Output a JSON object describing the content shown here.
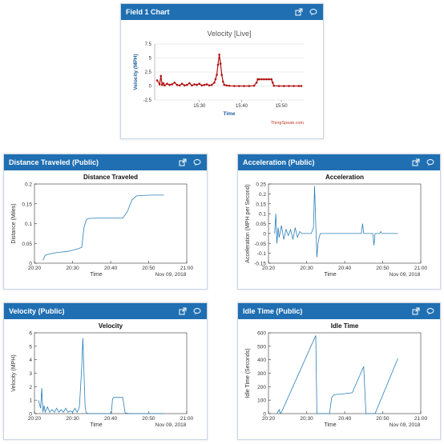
{
  "widgets": {
    "field1": {
      "title": "Field 1 Chart"
    },
    "distance": {
      "title": "Distance Traveled (Public)"
    },
    "acceleration": {
      "title": "Acceleration (Public)"
    },
    "velocity": {
      "title": "Velocity (Public)"
    },
    "idle": {
      "title": "Idle Time (Public)"
    }
  },
  "icons": {
    "open": "external-link-icon",
    "comment": "comment-icon"
  },
  "colors": {
    "header": "#1f6fb2",
    "thingspeak_line": "#b01010",
    "matlab_line": "#2a7fb8"
  },
  "chart_data": [
    {
      "id": "field1",
      "type": "line",
      "title": "Velocity [Live]",
      "xlabel": "Time",
      "ylabel": "Velocity (MPH)",
      "credit": "ThingSpeak.com",
      "x_ticks": [
        {
          "v": 15.5,
          "label": "15:30"
        },
        {
          "v": 15.67,
          "label": "15:40"
        },
        {
          "v": 15.83,
          "label": "15:50"
        }
      ],
      "y_ticks": [
        {
          "v": 7.5,
          "label": "7.5"
        },
        {
          "v": 5,
          "label": "5"
        },
        {
          "v": 2.5,
          "label": "2.5"
        },
        {
          "v": 0,
          "label": "0"
        },
        {
          "v": -2.5,
          "label": "-2.5"
        }
      ],
      "xlim": [
        15.32,
        15.92
      ],
      "ylim": [
        -2.5,
        7.5
      ],
      "markers": true,
      "x": [
        15.33,
        15.34,
        15.345,
        15.35,
        15.355,
        15.36,
        15.37,
        15.38,
        15.39,
        15.4,
        15.41,
        15.42,
        15.43,
        15.44,
        15.45,
        15.46,
        15.47,
        15.48,
        15.49,
        15.5,
        15.51,
        15.52,
        15.53,
        15.54,
        15.55,
        15.56,
        15.565,
        15.57,
        15.575,
        15.58,
        15.585,
        15.59,
        15.595,
        15.6,
        15.61,
        15.62,
        15.64,
        15.66,
        15.68,
        15.7,
        15.72,
        15.73,
        15.735,
        15.74,
        15.75,
        15.76,
        15.77,
        15.78,
        15.79,
        15.795,
        15.8,
        15.82,
        15.84,
        15.86,
        15.88,
        15.9,
        15.91
      ],
      "y": [
        1.0,
        0.3,
        1.8,
        0.2,
        0.5,
        0.1,
        0.4,
        0.2,
        0.3,
        0.6,
        0.2,
        0.1,
        0.4,
        0.1,
        0.2,
        0.5,
        0.1,
        0.3,
        0.2,
        0.4,
        0.1,
        0.2,
        0.3,
        0.1,
        0.2,
        0.6,
        1.2,
        2.0,
        3.8,
        5.6,
        4.0,
        2.0,
        0.8,
        0.2,
        0.1,
        0.05,
        0.0,
        0.0,
        0.0,
        0.0,
        0.05,
        0.6,
        1.2,
        1.2,
        1.2,
        1.2,
        1.2,
        1.2,
        1.2,
        0.6,
        0.05,
        0.0,
        0.0,
        0.0,
        0.0,
        0.0,
        0.0
      ]
    },
    {
      "id": "distance",
      "type": "line",
      "title": "Distance Traveled",
      "xlabel": "Time",
      "ylabel": "Distance (Miles)",
      "date_label": "Nov 09, 2018",
      "x_ticks": [
        {
          "v": 20.333,
          "label": "20:20"
        },
        {
          "v": 20.5,
          "label": "20:30"
        },
        {
          "v": 20.667,
          "label": "20:40"
        },
        {
          "v": 20.833,
          "label": "20:50"
        },
        {
          "v": 21.0,
          "label": "21:00"
        }
      ],
      "y_ticks": [
        {
          "v": 0,
          "label": "0"
        },
        {
          "v": 0.05,
          "label": "0.05"
        },
        {
          "v": 0.1,
          "label": "0.1"
        },
        {
          "v": 0.15,
          "label": "0.15"
        },
        {
          "v": 0.2,
          "label": "0.2"
        }
      ],
      "xlim": [
        20.333,
        21.0
      ],
      "ylim": [
        0,
        0.2
      ],
      "x": [
        20.37,
        20.38,
        20.39,
        20.42,
        20.45,
        20.48,
        20.5,
        20.52,
        20.54,
        20.55,
        20.56,
        20.57,
        20.6,
        20.65,
        20.7,
        20.72,
        20.74,
        20.76,
        20.78,
        20.8,
        20.85,
        20.9
      ],
      "y": [
        0.007,
        0.02,
        0.022,
        0.026,
        0.028,
        0.03,
        0.033,
        0.036,
        0.04,
        0.09,
        0.11,
        0.113,
        0.114,
        0.114,
        0.114,
        0.114,
        0.13,
        0.16,
        0.17,
        0.171,
        0.172,
        0.172
      ]
    },
    {
      "id": "acceleration",
      "type": "line",
      "title": "Acceleration",
      "xlabel": "Time",
      "ylabel": "Acceleration (MPH per Second)",
      "date_label": "Nov 09, 2018",
      "x_ticks": [
        {
          "v": 20.333,
          "label": "20:20"
        },
        {
          "v": 20.5,
          "label": "20:30"
        },
        {
          "v": 20.667,
          "label": "20:40"
        },
        {
          "v": 20.833,
          "label": "20:50"
        },
        {
          "v": 21.0,
          "label": "21:00"
        }
      ],
      "y_ticks": [
        {
          "v": -0.15,
          "label": "-0.15"
        },
        {
          "v": -0.1,
          "label": "-0.1"
        },
        {
          "v": -0.05,
          "label": "-0.05"
        },
        {
          "v": 0,
          "label": "0"
        },
        {
          "v": 0.05,
          "label": "0.05"
        },
        {
          "v": 0.1,
          "label": "0.1"
        },
        {
          "v": 0.15,
          "label": "0.15"
        },
        {
          "v": 0.2,
          "label": "0.2"
        },
        {
          "v": 0.25,
          "label": "0.25"
        }
      ],
      "xlim": [
        20.333,
        21.0
      ],
      "ylim": [
        -0.15,
        0.25
      ],
      "x": [
        20.36,
        20.365,
        20.37,
        20.375,
        20.38,
        20.39,
        20.4,
        20.41,
        20.42,
        20.43,
        20.44,
        20.45,
        20.46,
        20.47,
        20.48,
        20.5,
        20.52,
        20.53,
        20.535,
        20.54,
        20.545,
        20.55,
        20.555,
        20.56,
        20.57,
        20.6,
        20.65,
        20.7,
        20.74,
        20.745,
        20.75,
        20.76,
        20.79,
        20.795,
        20.8,
        20.82,
        20.825,
        20.83,
        20.85,
        20.9
      ],
      "y": [
        0.0,
        0.1,
        -0.05,
        0.03,
        -0.02,
        0.04,
        -0.03,
        0.02,
        -0.01,
        0.02,
        -0.03,
        0.03,
        -0.02,
        0.01,
        0.0,
        0.0,
        0.0,
        0.03,
        0.24,
        0.05,
        -0.12,
        -0.05,
        -0.02,
        0.0,
        0.0,
        0.0,
        0.0,
        0.0,
        0.0,
        0.05,
        0.0,
        0.0,
        0.0,
        -0.06,
        0.0,
        0.0,
        0.01,
        0.0,
        0.0,
        0.0
      ]
    },
    {
      "id": "velocity",
      "type": "line",
      "title": "Velocity",
      "xlabel": "Time",
      "ylabel": "Velocity (MPH)",
      "date_label": "Nov 09, 2018",
      "x_ticks": [
        {
          "v": 20.333,
          "label": "20:20"
        },
        {
          "v": 20.5,
          "label": "20:30"
        },
        {
          "v": 20.667,
          "label": "20:40"
        },
        {
          "v": 20.833,
          "label": "20:50"
        },
        {
          "v": 21.0,
          "label": "21:00"
        }
      ],
      "y_ticks": [
        {
          "v": 0,
          "label": "0"
        },
        {
          "v": 1,
          "label": "1"
        },
        {
          "v": 2,
          "label": "2"
        },
        {
          "v": 3,
          "label": "3"
        },
        {
          "v": 4,
          "label": "4"
        },
        {
          "v": 5,
          "label": "5"
        },
        {
          "v": 6,
          "label": "6"
        }
      ],
      "xlim": [
        20.333,
        21.0
      ],
      "ylim": [
        0,
        6
      ],
      "x": [
        20.35,
        20.36,
        20.365,
        20.37,
        20.375,
        20.38,
        20.39,
        20.4,
        20.41,
        20.42,
        20.43,
        20.44,
        20.45,
        20.46,
        20.47,
        20.48,
        20.49,
        20.5,
        20.51,
        20.52,
        20.53,
        20.54,
        20.545,
        20.55,
        20.555,
        20.56,
        20.57,
        20.6,
        20.65,
        20.67,
        20.675,
        20.68,
        20.7,
        20.72,
        20.725,
        20.73,
        20.75,
        20.8,
        20.9
      ],
      "y": [
        1.0,
        0.4,
        1.9,
        0.1,
        0.6,
        0.1,
        0.5,
        0.1,
        0.3,
        0.1,
        0.4,
        0.1,
        0.3,
        0.1,
        0.4,
        0.1,
        0.2,
        0.1,
        0.4,
        0.1,
        0.5,
        3.5,
        5.6,
        3.0,
        0.5,
        0.05,
        0.0,
        0.0,
        0.0,
        0.0,
        1.1,
        1.2,
        1.2,
        1.2,
        0.6,
        0.05,
        0.0,
        0.0,
        0.0
      ]
    },
    {
      "id": "idle",
      "type": "line",
      "title": "Idle Time",
      "xlabel": "Time",
      "ylabel": "Idle Time (Seconds)",
      "date_label": "Nov 09, 2018",
      "x_ticks": [
        {
          "v": 20.333,
          "label": "20:20"
        },
        {
          "v": 20.5,
          "label": "20:30"
        },
        {
          "v": 20.667,
          "label": "20:40"
        },
        {
          "v": 20.833,
          "label": "20:50"
        },
        {
          "v": 21.0,
          "label": "21:00"
        }
      ],
      "y_ticks": [
        {
          "v": 0,
          "label": "0"
        },
        {
          "v": 100,
          "label": "100"
        },
        {
          "v": 200,
          "label": "200"
        },
        {
          "v": 300,
          "label": "300"
        },
        {
          "v": 400,
          "label": "400"
        },
        {
          "v": 500,
          "label": "500"
        },
        {
          "v": 600,
          "label": "600"
        }
      ],
      "xlim": [
        20.333,
        21.0
      ],
      "ylim": [
        0,
        600
      ],
      "x": [
        20.37,
        20.38,
        20.385,
        20.39,
        20.54,
        20.545,
        20.55,
        20.6,
        20.61,
        20.62,
        20.65,
        20.7,
        20.75,
        20.76,
        20.765,
        20.8,
        20.9
      ],
      "y": [
        0,
        30,
        0,
        10,
        580,
        0,
        0,
        0,
        120,
        140,
        145,
        155,
        350,
        0,
        0,
        0,
        410
      ]
    }
  ]
}
